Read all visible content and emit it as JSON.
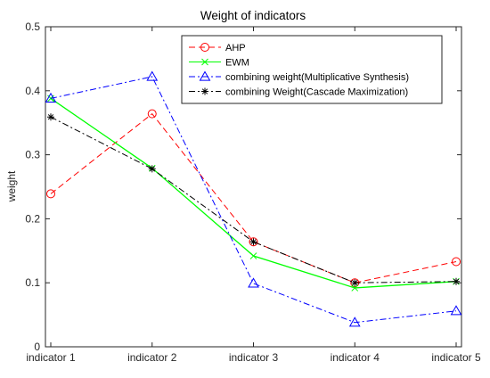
{
  "chart_data": {
    "type": "line",
    "title": "Weight of indicators",
    "xlabel": "",
    "ylabel": "weight",
    "categories": [
      "indicator 1",
      "indicator 2",
      "indicator 3",
      "indicator 4",
      "indicator 5"
    ],
    "ylim": [
      0,
      0.5
    ],
    "yticks": [
      0,
      0.1,
      0.2,
      0.3,
      0.4,
      0.5
    ],
    "ytick_labels": [
      "0",
      "0.1",
      "0.2",
      "0.3",
      "0.4",
      "0.5"
    ],
    "grid": false,
    "legend_position": "top-right",
    "series": [
      {
        "name": "AHP",
        "values": [
          0.239,
          0.364,
          0.164,
          0.1,
          0.133
        ],
        "color": "#ff0000",
        "dash": "dashed",
        "marker": "circle"
      },
      {
        "name": "EWM",
        "values": [
          0.388,
          0.279,
          0.142,
          0.092,
          0.102
        ],
        "color": "#00ff00",
        "dash": "solid",
        "marker": "x"
      },
      {
        "name": "combining weight(Multiplicative Synthesis)",
        "values": [
          0.388,
          0.422,
          0.099,
          0.038,
          0.056
        ],
        "color": "#0000ff",
        "dash": "dashdot",
        "marker": "triangle"
      },
      {
        "name": "combining Weight(Cascade Maximization)",
        "values": [
          0.359,
          0.278,
          0.164,
          0.1,
          0.102
        ],
        "color": "#000000",
        "dash": "dashdot",
        "marker": "star"
      }
    ]
  }
}
